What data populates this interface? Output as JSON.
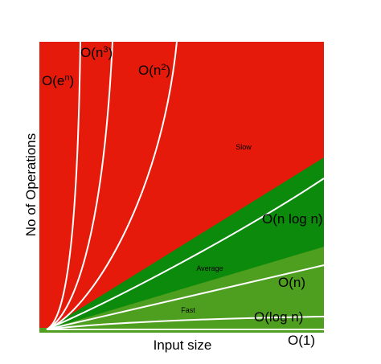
{
  "chart_data": {
    "type": "area",
    "xlabel": "Input size",
    "ylabel": "No of Operations",
    "xlim": [
      0,
      1
    ],
    "ylim": [
      0,
      1
    ],
    "grid": false,
    "regions": [
      {
        "name": "Slow",
        "color": "#e51a0b",
        "label": "Slow"
      },
      {
        "name": "Average",
        "color": "#0b8a0b",
        "label": "Average"
      },
      {
        "name": "Fast",
        "color": "#4e9e1f",
        "label": "Fast"
      }
    ],
    "curves": [
      {
        "label_base": "O(e",
        "label_sup": "n",
        "label_tail": ")",
        "kind": "exp"
      },
      {
        "label_base": "O(n",
        "label_sup": "3",
        "label_tail": ")",
        "kind": "cubic"
      },
      {
        "label_base": "O(n",
        "label_sup": "2",
        "label_tail": ")",
        "kind": "quadratic"
      },
      {
        "label_base": "O(n log n)",
        "label_sup": "",
        "label_tail": "",
        "kind": "nlogn"
      },
      {
        "label_base": "O(n)",
        "label_sup": "",
        "label_tail": "",
        "kind": "linear"
      },
      {
        "label_base": "O(log n)",
        "label_sup": "",
        "label_tail": "",
        "kind": "log"
      },
      {
        "label_base": "O(1)",
        "label_sup": "",
        "label_tail": "",
        "kind": "constant"
      }
    ],
    "curve_color": "#ffffff"
  }
}
